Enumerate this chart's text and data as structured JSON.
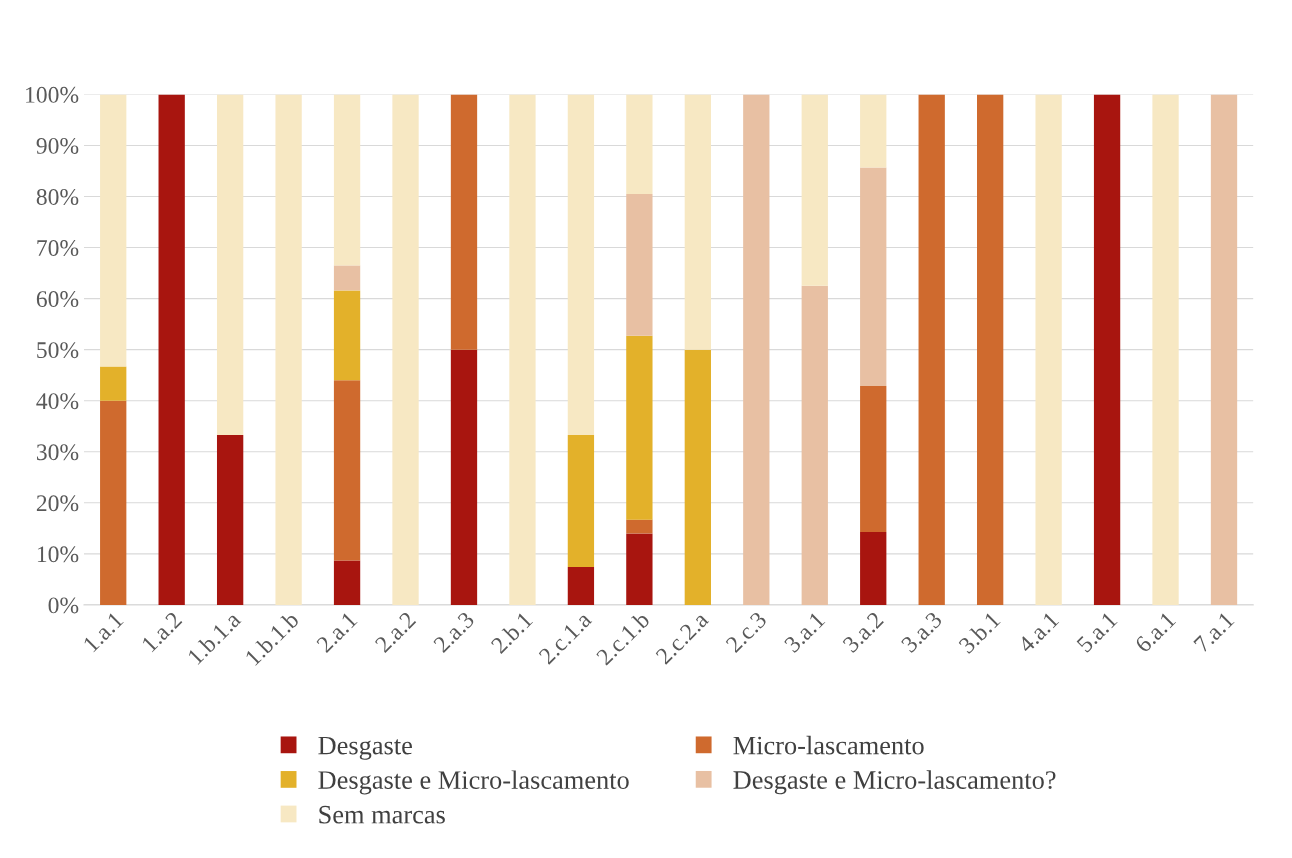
{
  "chart_data": {
    "type": "bar",
    "stacked": true,
    "grid": "y",
    "legend": "bottom",
    "categories": [
      "1.a.1",
      "1.a.2",
      "1.b.1.a",
      "1.b.1.b",
      "2.a.1",
      "2.a.2",
      "2.a.3",
      "2.b.1",
      "2.c.1.a",
      "2.c.1.b",
      "2.c.2.a",
      "2.c.3",
      "3.a.1",
      "3.a.2",
      "3.a.3",
      "3.b.1",
      "4.a.1",
      "5.a.1",
      "6.a.1",
      "7.a.1"
    ],
    "ylim": [
      0,
      100
    ],
    "yticks": [
      {
        "value": 0,
        "label": "0%"
      },
      {
        "value": 10,
        "label": "10%"
      },
      {
        "value": 20,
        "label": "20%"
      },
      {
        "value": 30,
        "label": "30%"
      },
      {
        "value": 40,
        "label": "40%"
      },
      {
        "value": 50,
        "label": "50%"
      },
      {
        "value": 60,
        "label": "60%"
      },
      {
        "value": 70,
        "label": "70%"
      },
      {
        "value": 80,
        "label": "80%"
      },
      {
        "value": 90,
        "label": "90%"
      },
      {
        "value": 100,
        "label": "100%"
      }
    ],
    "series": [
      {
        "name": "Desgaste",
        "color": "#a8150f",
        "values": [
          0,
          100,
          33.3,
          0,
          8.7,
          0,
          50,
          0,
          7.4,
          14,
          0,
          0,
          0,
          14.3,
          0,
          0,
          0,
          100,
          0,
          0
        ]
      },
      {
        "name": "Micro-lascamento",
        "color": "#cf6a2e",
        "values": [
          40,
          0,
          0,
          0,
          35.3,
          0,
          50,
          0,
          0,
          2.7,
          0,
          0,
          0,
          28.6,
          100,
          100,
          0,
          0,
          0,
          0
        ]
      },
      {
        "name": "Desgaste e Micro-lascamento",
        "color": "#e3b12a",
        "values": [
          6.7,
          0,
          0,
          0,
          17.6,
          0,
          0,
          0,
          25.9,
          36,
          50,
          0,
          0,
          0,
          0,
          0,
          0,
          0,
          0,
          0
        ]
      },
      {
        "name": "Desgaste e Micro-lascamento?",
        "color": "#e8c0a3",
        "values": [
          0,
          0,
          0,
          0,
          4.9,
          0,
          0,
          0,
          0,
          27.8,
          0,
          100,
          62.5,
          42.8,
          0,
          0,
          0,
          0,
          0,
          100
        ]
      },
      {
        "name": "Sem marcas",
        "color": "#f7e8c3",
        "values": [
          53.3,
          0,
          66.7,
          100,
          33.5,
          100,
          0,
          100,
          66.7,
          19.5,
          50,
          0,
          37.5,
          14.3,
          0,
          0,
          100,
          0,
          100,
          0
        ]
      }
    ]
  }
}
